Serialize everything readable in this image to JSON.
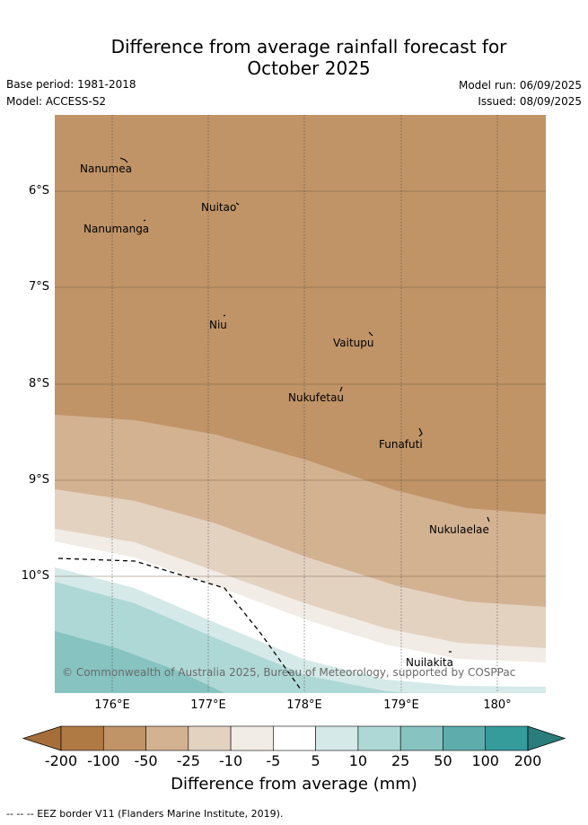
{
  "title_line1": "Difference from average rainfall forecast for",
  "title_line2": "October 2025",
  "base_period": "Base period: 1981-2018",
  "model": "Model: ACCESS-S2",
  "model_run": "Model run: 06/09/2025",
  "issued": "Issued: 08/09/2025",
  "lat_labels": [
    "6°S",
    "7°S",
    "8°S",
    "9°S",
    "10°S"
  ],
  "lon_labels": [
    "176°E",
    "177°E",
    "178°E",
    "179°E",
    "180°"
  ],
  "places": [
    "Nanumea",
    "Nuitao",
    "Nanumanga",
    "Niu",
    "Vaitupu",
    "Nukufetau",
    "Funafuti",
    "Nukulaelae",
    "Nuilakita"
  ],
  "copyright": "© Commonwealth of Australia 2025, Bureau of Meteorology, supported by COSPPac",
  "colorbar": {
    "ticks": [
      "-200",
      "-100",
      "-50",
      "-25",
      "-10",
      "-5",
      "5",
      "10",
      "25",
      "50",
      "100",
      "200"
    ],
    "colors": [
      "#a66e3a",
      "#b07a45",
      "#c09467",
      "#d3b292",
      "#e4d2c1",
      "#f1ece5",
      "#ffffff",
      "#d5eae8",
      "#aed8d6",
      "#86c3c1",
      "#5eadac",
      "#359c9b",
      "#2b7d7c"
    ],
    "title": "Difference from average (mm)"
  },
  "footer": "-- -- -- EEZ border V11 (Flanders Marine Institute, 2019)."
}
